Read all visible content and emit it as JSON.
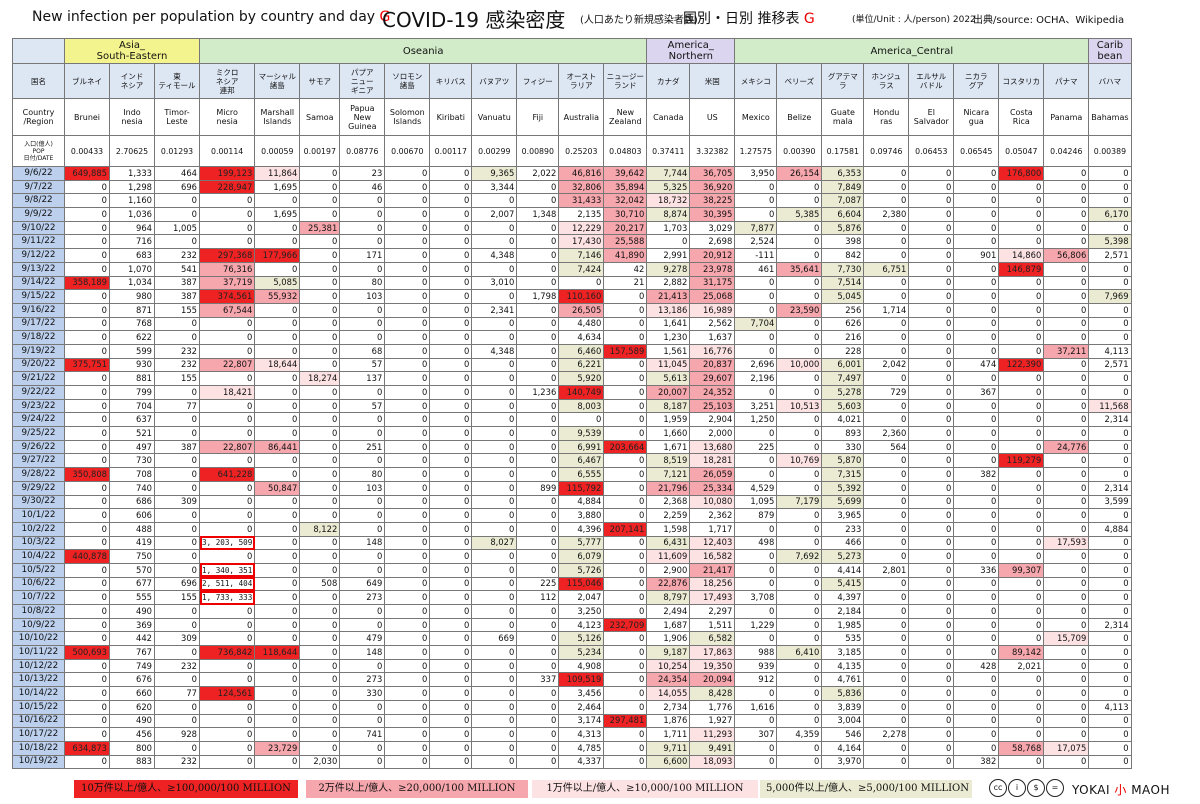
{
  "title": {
    "en": "New infection per population by country and day",
    "g1": "G",
    "main": "COVID-19 感染密度",
    "sub": "(人口あたり新規感染者数)",
    "jp": "国別・日別 推移表",
    "g2": "G",
    "unit": "(単位/Unit : 人/person) 2022",
    "source": "出典/source: OCHA、Wikipedia"
  },
  "chart_data": {
    "type": "table",
    "row_header_label": "国名",
    "en_header_label": "Country\n/Region",
    "pop_header_label": "入口(億人)\nPOP\n日付/DATE",
    "regions": [
      {
        "name": "Asia_\nSouth-Eastern",
        "span": 3,
        "cls": "rg-asia"
      },
      {
        "name": "Oseania",
        "span": 10,
        "cls": "rg-oce"
      },
      {
        "name": "America_\nNorthern",
        "span": 2,
        "cls": "rg-amn"
      },
      {
        "name": "America_Central",
        "span": 8,
        "cls": "rg-amc"
      },
      {
        "name": "Carib\nbean",
        "span": 1,
        "cls": "rg-car"
      }
    ],
    "countries_jp": [
      "ブルネイ",
      "インド\nネシア",
      "東\nティモール",
      "ミクロ\nネシア\n連邦",
      "マーシャル\n諸島",
      "サモア",
      "パプア\nニュー\nギニア",
      "ソロモン\n諸島",
      "キリバス",
      "バヌアツ",
      "フィジー",
      "オースト\nラリア",
      "ニュージー\nランド",
      "カナダ",
      "米国",
      "メキシコ",
      "ベリーズ",
      "グアテマラ",
      "ホンジュ\nラス",
      "エルサル\nバドル",
      "ニカラ\nグア",
      "コスタリカ",
      "パナマ",
      "バハマ"
    ],
    "countries_en": [
      "Brunei",
      "Indo\nnesia",
      "Timor-\nLeste",
      "Micro\nnesia",
      "Marshall\nIslands",
      "Samoa",
      "Papua\nNew\nGuinea",
      "Solomon\nIslands",
      "Kiribati",
      "Vanuatu",
      "Fiji",
      "Australia",
      "New\nZealand",
      "Canada",
      "US",
      "Mexico",
      "Belize",
      "Guate\nmala",
      "Hondu\nras",
      "El\nSalvador",
      "Nicara\ngua",
      "Costa\nRica",
      "Panama",
      "Bahamas"
    ],
    "population": [
      "0.00433",
      "2.70625",
      "0.01293",
      "0.00114",
      "0.00059",
      "0.00197",
      "0.08776",
      "0.00670",
      "0.00117",
      "0.00299",
      "0.00890",
      "0.25203",
      "0.04803",
      "0.37411",
      "3.32382",
      "1.27575",
      "0.00390",
      "0.17581",
      "0.09746",
      "0.06453",
      "0.06545",
      "0.05047",
      "0.04246",
      "0.00389"
    ],
    "dates": [
      "9/6/22",
      "9/7/22",
      "9/8/22",
      "9/9/22",
      "9/10/22",
      "9/11/22",
      "9/12/22",
      "9/13/22",
      "9/14/22",
      "9/15/22",
      "9/16/22",
      "9/17/22",
      "9/18/22",
      "9/19/22",
      "9/20/22",
      "9/21/22",
      "9/22/22",
      "9/23/22",
      "9/24/22",
      "9/25/22",
      "9/26/22",
      "9/27/22",
      "9/28/22",
      "9/29/22",
      "9/30/22",
      "10/1/22",
      "10/2/22",
      "10/3/22",
      "10/4/22",
      "10/5/22",
      "10/6/22",
      "10/7/22",
      "10/8/22",
      "10/9/22",
      "10/10/22",
      "10/11/22",
      "10/12/22",
      "10/13/22",
      "10/14/22",
      "10/15/22",
      "10/16/22",
      "10/17/22",
      "10/18/22",
      "10/19/22"
    ],
    "rows": [
      [
        "649,885",
        "1,333",
        "464",
        "199,123",
        "11,864",
        "0",
        "23",
        "0",
        "0",
        "9,365",
        "2,022",
        "46,816",
        "39,642",
        "7,744",
        "36,705",
        "3,950",
        "26,154",
        "6,353",
        "0",
        "0",
        "0",
        "176,800",
        "0",
        "0"
      ],
      [
        "0",
        "1,298",
        "696",
        "228,947",
        "1,695",
        "0",
        "46",
        "0",
        "0",
        "3,344",
        "0",
        "32,806",
        "35,894",
        "5,325",
        "36,920",
        "0",
        "0",
        "7,849",
        "0",
        "0",
        "0",
        "0",
        "0",
        "0"
      ],
      [
        "0",
        "1,160",
        "0",
        "0",
        "0",
        "0",
        "0",
        "0",
        "0",
        "0",
        "0",
        "31,433",
        "32,042",
        "18,732",
        "38,225",
        "0",
        "0",
        "7,087",
        "0",
        "0",
        "0",
        "0",
        "0",
        "0"
      ],
      [
        "0",
        "1,036",
        "0",
        "0",
        "1,695",
        "0",
        "0",
        "0",
        "0",
        "2,007",
        "1,348",
        "2,135",
        "30,710",
        "8,874",
        "30,395",
        "0",
        "5,385",
        "6,604",
        "2,380",
        "0",
        "0",
        "0",
        "0",
        "6,170"
      ],
      [
        "0",
        "964",
        "1,005",
        "0",
        "0",
        "25,381",
        "0",
        "0",
        "0",
        "0",
        "0",
        "12,229",
        "20,217",
        "1,703",
        "3,029",
        "7,877",
        "0",
        "5,876",
        "0",
        "0",
        "0",
        "0",
        "0",
        "0"
      ],
      [
        "0",
        "716",
        "0",
        "0",
        "0",
        "0",
        "0",
        "0",
        "0",
        "0",
        "0",
        "17,430",
        "25,588",
        "0",
        "2,698",
        "2,524",
        "0",
        "398",
        "0",
        "0",
        "0",
        "0",
        "0",
        "5,398"
      ],
      [
        "0",
        "683",
        "232",
        "297,368",
        "177,966",
        "0",
        "171",
        "0",
        "0",
        "4,348",
        "0",
        "7,146",
        "41,890",
        "2,991",
        "20,912",
        "-111",
        "0",
        "842",
        "0",
        "0",
        "901",
        "14,860",
        "56,806",
        "2,571"
      ],
      [
        "0",
        "1,070",
        "541",
        "76,316",
        "0",
        "0",
        "0",
        "0",
        "0",
        "0",
        "0",
        "7,424",
        "42",
        "9,278",
        "23,978",
        "461",
        "35,641",
        "7,730",
        "6,751",
        "0",
        "0",
        "146,879",
        "0",
        "0"
      ],
      [
        "358,189",
        "1,034",
        "387",
        "37,719",
        "5,085",
        "0",
        "80",
        "0",
        "0",
        "3,010",
        "0",
        "0",
        "21",
        "2,882",
        "31,175",
        "0",
        "0",
        "7,514",
        "0",
        "0",
        "0",
        "0",
        "0",
        "0"
      ],
      [
        "0",
        "980",
        "387",
        "374,561",
        "55,932",
        "0",
        "103",
        "0",
        "0",
        "0",
        "1,798",
        "110,160",
        "0",
        "21,413",
        "25,068",
        "0",
        "0",
        "5,045",
        "0",
        "0",
        "0",
        "0",
        "0",
        "7,969"
      ],
      [
        "0",
        "871",
        "155",
        "67,544",
        "0",
        "0",
        "0",
        "0",
        "0",
        "2,341",
        "0",
        "26,505",
        "0",
        "13,186",
        "16,989",
        "0",
        "23,590",
        "256",
        "1,714",
        "0",
        "0",
        "0",
        "0",
        "0"
      ],
      [
        "0",
        "768",
        "0",
        "0",
        "0",
        "0",
        "0",
        "0",
        "0",
        "0",
        "0",
        "4,480",
        "0",
        "1,641",
        "2,562",
        "7,704",
        "0",
        "626",
        "0",
        "0",
        "0",
        "0",
        "0",
        "0"
      ],
      [
        "0",
        "622",
        "0",
        "0",
        "0",
        "0",
        "0",
        "0",
        "0",
        "0",
        "0",
        "4,634",
        "0",
        "1,230",
        "1,637",
        "0",
        "0",
        "216",
        "0",
        "0",
        "0",
        "0",
        "0",
        "0"
      ],
      [
        "0",
        "599",
        "232",
        "0",
        "0",
        "0",
        "68",
        "0",
        "0",
        "4,348",
        "0",
        "6,460",
        "157,589",
        "1,561",
        "16,776",
        "0",
        "0",
        "228",
        "0",
        "0",
        "0",
        "0",
        "37,211",
        "4,113"
      ],
      [
        "375,751",
        "930",
        "232",
        "22,807",
        "18,644",
        "0",
        "57",
        "0",
        "0",
        "0",
        "0",
        "6,221",
        "0",
        "11,045",
        "20,837",
        "2,696",
        "10,000",
        "6,001",
        "2,042",
        "0",
        "474",
        "122,390",
        "0",
        "2,571"
      ],
      [
        "0",
        "881",
        "155",
        "0",
        "0",
        "18,274",
        "137",
        "0",
        "0",
        "0",
        "0",
        "5,920",
        "0",
        "5,613",
        "29,607",
        "2,196",
        "0",
        "7,497",
        "0",
        "0",
        "0",
        "0",
        "0",
        "0"
      ],
      [
        "0",
        "799",
        "0",
        "18,421",
        "0",
        "0",
        "0",
        "0",
        "0",
        "0",
        "1,236",
        "140,749",
        "0",
        "20,007",
        "24,352",
        "0",
        "0",
        "5,278",
        "729",
        "0",
        "367",
        "0",
        "0",
        "0"
      ],
      [
        "0",
        "704",
        "77",
        "0",
        "0",
        "0",
        "57",
        "0",
        "0",
        "0",
        "0",
        "8,003",
        "0",
        "8,187",
        "25,103",
        "3,251",
        "10,513",
        "5,603",
        "0",
        "0",
        "0",
        "0",
        "0",
        "11,568"
      ],
      [
        "0",
        "637",
        "0",
        "0",
        "0",
        "0",
        "0",
        "0",
        "0",
        "0",
        "0",
        "0",
        "0",
        "1,959",
        "2,904",
        "1,250",
        "0",
        "4,021",
        "0",
        "0",
        "0",
        "0",
        "0",
        "2,314"
      ],
      [
        "0",
        "521",
        "0",
        "0",
        "0",
        "0",
        "0",
        "0",
        "0",
        "0",
        "0",
        "9,539",
        "0",
        "1,660",
        "2,000",
        "0",
        "0",
        "893",
        "2,360",
        "0",
        "0",
        "0",
        "0",
        "0"
      ],
      [
        "0",
        "497",
        "387",
        "22,807",
        "86,441",
        "0",
        "251",
        "0",
        "0",
        "0",
        "0",
        "6,991",
        "203,664",
        "1,671",
        "13,680",
        "225",
        "0",
        "330",
        "564",
        "0",
        "0",
        "0",
        "24,776",
        "0"
      ],
      [
        "0",
        "730",
        "0",
        "0",
        "0",
        "0",
        "0",
        "0",
        "0",
        "0",
        "0",
        "6,467",
        "0",
        "8,519",
        "18,281",
        "0",
        "10,769",
        "5,870",
        "0",
        "0",
        "0",
        "119,279",
        "0",
        "0"
      ],
      [
        "350,808",
        "708",
        "0",
        "641,228",
        "0",
        "0",
        "80",
        "0",
        "0",
        "0",
        "0",
        "6,555",
        "0",
        "7,121",
        "26,059",
        "0",
        "0",
        "7,315",
        "0",
        "0",
        "382",
        "0",
        "0",
        "0"
      ],
      [
        "0",
        "740",
        "0",
        "0",
        "50,847",
        "0",
        "103",
        "0",
        "0",
        "0",
        "899",
        "115,792",
        "0",
        "21,796",
        "25,334",
        "4,529",
        "0",
        "5,392",
        "0",
        "0",
        "0",
        "0",
        "0",
        "2,314"
      ],
      [
        "0",
        "686",
        "309",
        "0",
        "0",
        "0",
        "0",
        "0",
        "0",
        "0",
        "0",
        "4,884",
        "0",
        "2,368",
        "10,080",
        "1,095",
        "7,179",
        "5,699",
        "0",
        "0",
        "0",
        "0",
        "0",
        "3,599"
      ],
      [
        "0",
        "606",
        "0",
        "0",
        "0",
        "0",
        "0",
        "0",
        "0",
        "0",
        "0",
        "3,880",
        "0",
        "2,259",
        "2,362",
        "879",
        "0",
        "3,965",
        "0",
        "0",
        "0",
        "0",
        "0",
        "0"
      ],
      [
        "0",
        "488",
        "0",
        "0",
        "0",
        "8,122",
        "0",
        "0",
        "0",
        "0",
        "0",
        "4,396",
        "207,141",
        "1,598",
        "1,717",
        "0",
        "0",
        "233",
        "0",
        "0",
        "0",
        "0",
        "0",
        "4,884"
      ],
      [
        "0",
        "419",
        "0",
        "3, 203, 509",
        "0",
        "0",
        "148",
        "0",
        "0",
        "8,027",
        "0",
        "5,777",
        "0",
        "6,431",
        "12,403",
        "498",
        "0",
        "466",
        "0",
        "0",
        "0",
        "0",
        "17,593",
        "0"
      ],
      [
        "440,878",
        "750",
        "0",
        "0",
        "0",
        "0",
        "0",
        "0",
        "0",
        "0",
        "0",
        "6,079",
        "0",
        "11,609",
        "16,582",
        "0",
        "7,692",
        "5,273",
        "0",
        "0",
        "0",
        "0",
        "0",
        "0"
      ],
      [
        "0",
        "570",
        "0",
        "1, 340, 351",
        "0",
        "0",
        "0",
        "0",
        "0",
        "0",
        "0",
        "5,726",
        "0",
        "2,900",
        "21,417",
        "0",
        "0",
        "4,414",
        "2,801",
        "0",
        "336",
        "99,307",
        "0",
        "0"
      ],
      [
        "0",
        "677",
        "696",
        "2, 511, 404",
        "0",
        "508",
        "649",
        "0",
        "0",
        "0",
        "225",
        "115,046",
        "0",
        "22,876",
        "18,256",
        "0",
        "0",
        "5,415",
        "0",
        "0",
        "0",
        "0",
        "0",
        "0"
      ],
      [
        "0",
        "555",
        "155",
        "1, 733, 333",
        "0",
        "0",
        "273",
        "0",
        "0",
        "0",
        "112",
        "2,047",
        "0",
        "8,797",
        "17,493",
        "3,708",
        "0",
        "4,397",
        "0",
        "0",
        "0",
        "0",
        "0",
        "0"
      ],
      [
        "0",
        "490",
        "0",
        "0",
        "0",
        "0",
        "0",
        "0",
        "0",
        "0",
        "0",
        "3,250",
        "0",
        "2,494",
        "2,297",
        "0",
        "0",
        "2,184",
        "0",
        "0",
        "0",
        "0",
        "0",
        "0"
      ],
      [
        "0",
        "369",
        "0",
        "0",
        "0",
        "0",
        "0",
        "0",
        "0",
        "0",
        "0",
        "4,123",
        "232,709",
        "1,687",
        "1,511",
        "1,229",
        "0",
        "1,985",
        "0",
        "0",
        "0",
        "0",
        "0",
        "2,314"
      ],
      [
        "0",
        "442",
        "309",
        "0",
        "0",
        "0",
        "479",
        "0",
        "0",
        "669",
        "0",
        "5,126",
        "0",
        "1,906",
        "6,582",
        "0",
        "0",
        "535",
        "0",
        "0",
        "0",
        "0",
        "15,709",
        "0"
      ],
      [
        "500,693",
        "767",
        "0",
        "736,842",
        "118,644",
        "0",
        "148",
        "0",
        "0",
        "0",
        "0",
        "5,234",
        "0",
        "9,187",
        "17,863",
        "988",
        "6,410",
        "3,185",
        "0",
        "0",
        "0",
        "89,142",
        "0",
        "0"
      ],
      [
        "0",
        "749",
        "232",
        "0",
        "0",
        "0",
        "0",
        "0",
        "0",
        "0",
        "0",
        "4,908",
        "0",
        "10,254",
        "19,350",
        "939",
        "0",
        "4,135",
        "0",
        "0",
        "428",
        "2,021",
        "0",
        "0"
      ],
      [
        "0",
        "676",
        "0",
        "0",
        "0",
        "0",
        "273",
        "0",
        "0",
        "0",
        "337",
        "109,519",
        "0",
        "24,354",
        "20,094",
        "912",
        "0",
        "4,761",
        "0",
        "0",
        "0",
        "0",
        "0",
        "0"
      ],
      [
        "0",
        "660",
        "77",
        "124,561",
        "0",
        "0",
        "330",
        "0",
        "0",
        "0",
        "0",
        "3,456",
        "0",
        "14,055",
        "8,428",
        "0",
        "0",
        "5,836",
        "0",
        "0",
        "0",
        "0",
        "0",
        "0"
      ],
      [
        "0",
        "620",
        "0",
        "0",
        "0",
        "0",
        "0",
        "0",
        "0",
        "0",
        "0",
        "2,464",
        "0",
        "2,734",
        "1,776",
        "1,616",
        "0",
        "3,839",
        "0",
        "0",
        "0",
        "0",
        "0",
        "4,113"
      ],
      [
        "0",
        "490",
        "0",
        "0",
        "0",
        "0",
        "0",
        "0",
        "0",
        "0",
        "0",
        "3,174",
        "297,481",
        "1,876",
        "1,927",
        "0",
        "0",
        "3,004",
        "0",
        "0",
        "0",
        "0",
        "0",
        "0"
      ],
      [
        "0",
        "456",
        "928",
        "0",
        "0",
        "0",
        "741",
        "0",
        "0",
        "0",
        "0",
        "4,313",
        "0",
        "1,711",
        "11,293",
        "307",
        "4,359",
        "546",
        "2,278",
        "0",
        "0",
        "0",
        "0",
        "0"
      ],
      [
        "634,873",
        "800",
        "0",
        "0",
        "23,729",
        "0",
        "0",
        "0",
        "0",
        "0",
        "0",
        "4,785",
        "0",
        "9,711",
        "9,491",
        "0",
        "0",
        "4,164",
        "0",
        "0",
        "0",
        "58,768",
        "17,075",
        "0"
      ],
      [
        "0",
        "883",
        "232",
        "0",
        "0",
        "2,030",
        "0",
        "0",
        "0",
        "0",
        "0",
        "4,337",
        "0",
        "6,600",
        "18,093",
        "0",
        "0",
        "3,970",
        "0",
        "0",
        "382",
        "0",
        "0",
        "0"
      ]
    ],
    "legend": [
      {
        "label": "10万件以上/億人、≥100,000/100 MILLION",
        "color": "#ee2222"
      },
      {
        "label": "2万件以上/億人、≥20,000/100 MILLION",
        "color": "#f6a7ad"
      },
      {
        "label": "1万件以上/億人、≥10,000/100 MILLION",
        "color": "#fde2e4"
      },
      {
        "label": "5,000件以上/億人、≥5,000/100 MILLION",
        "color": "#ebebd3"
      }
    ]
  },
  "credits": {
    "cc_icons": [
      "cc",
      "by",
      "nc",
      "nd"
    ],
    "cc_labels": [
      "cc",
      "i",
      "$",
      "="
    ],
    "brand_a": "YOKAI",
    "brand_b": "小",
    "brand_c": "MAOH"
  }
}
